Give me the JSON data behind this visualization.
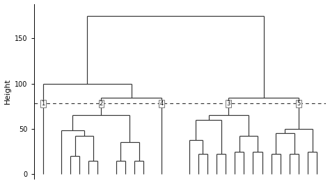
{
  "ylabel": "Height",
  "yticks": [
    0,
    50,
    100,
    150
  ],
  "dashed_y": 78,
  "bg_color": "#ffffff",
  "line_color": "#333333",
  "line_width": 0.85,
  "label_fontsize": 6.0,
  "ylabel_fontsize": 8,
  "ytick_fontsize": 7,
  "figsize": [
    4.74,
    2.64
  ],
  "dpi": 100,
  "xlim": [
    0,
    32
  ],
  "ylim": [
    -5,
    188
  ]
}
